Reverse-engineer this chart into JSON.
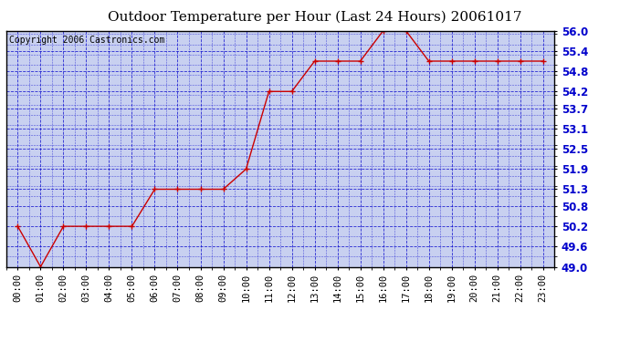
{
  "title": "Outdoor Temperature per Hour (Last 24 Hours) 20061017",
  "copyright_text": "Copyright 2006 Castronics.com",
  "hours": [
    "00:00",
    "01:00",
    "02:00",
    "03:00",
    "04:00",
    "05:00",
    "06:00",
    "07:00",
    "08:00",
    "09:00",
    "10:00",
    "11:00",
    "12:00",
    "13:00",
    "14:00",
    "15:00",
    "16:00",
    "17:00",
    "18:00",
    "19:00",
    "20:00",
    "21:00",
    "22:00",
    "23:00"
  ],
  "temperatures": [
    50.2,
    49.0,
    50.2,
    50.2,
    50.2,
    50.2,
    51.3,
    51.3,
    51.3,
    51.3,
    51.9,
    54.2,
    54.2,
    55.1,
    55.1,
    55.1,
    56.0,
    56.0,
    55.1,
    55.1,
    55.1,
    55.1,
    55.1,
    55.1
  ],
  "ylim_min": 49.0,
  "ylim_max": 56.0,
  "yticks": [
    49.0,
    49.6,
    50.2,
    50.8,
    51.3,
    51.9,
    52.5,
    53.1,
    53.7,
    54.2,
    54.8,
    55.4,
    56.0
  ],
  "ytick_labels": [
    "49.0",
    "49.6",
    "50.2",
    "50.8",
    "51.3",
    "51.9",
    "52.5",
    "53.1",
    "53.7",
    "54.2",
    "54.8",
    "55.4",
    "56.0"
  ],
  "line_color": "#cc0000",
  "bg_color": "#c8d0f0",
  "fig_bg_color": "#ffffff",
  "grid_color": "#0000cc",
  "title_color": "#000000",
  "copyright_color": "#000000",
  "ylabel_color": "#0000cc",
  "title_fontsize": 11,
  "tick_fontsize": 7.5,
  "copyright_fontsize": 7
}
